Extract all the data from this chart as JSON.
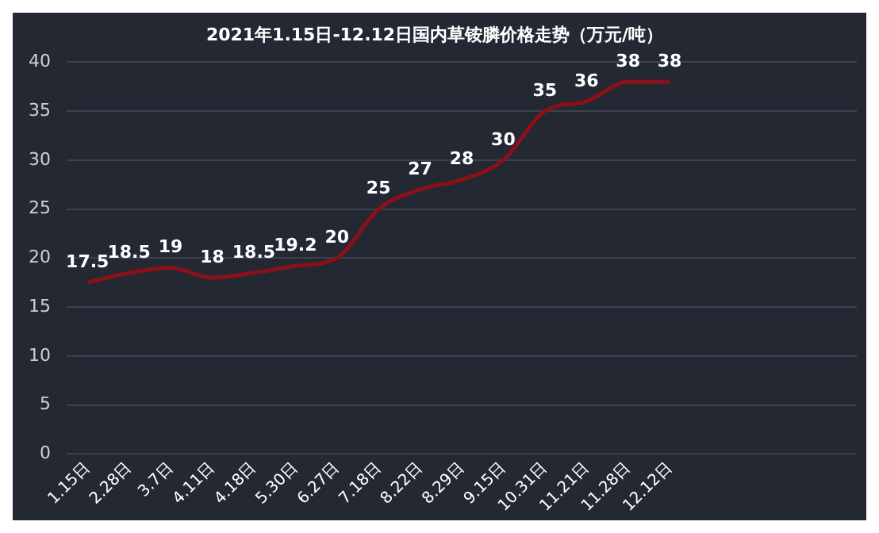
{
  "chart_data": {
    "type": "line",
    "title": "2021年1.15日-12.12日国内草铵膦价格走势（万元/吨）",
    "categories": [
      "1.15日",
      "2.28日",
      "3.7日",
      "4.11日",
      "4.18日",
      "5.30日",
      "6.27日",
      "7.18日",
      "8.22日",
      "8.29日",
      "9.15日",
      "10.31日",
      "11.21日",
      "11.28日",
      "12.12日"
    ],
    "series": [
      {
        "color": "#8b1018",
        "values": [
          17.5,
          18.5,
          19,
          18,
          18.5,
          19.2,
          20,
          25,
          27,
          28,
          30,
          35,
          36,
          38,
          38
        ]
      }
    ],
    "ylim": [
      0,
      40
    ],
    "yticks": [
      0,
      5,
      10,
      15,
      20,
      25,
      30,
      35,
      40
    ],
    "grid": "y",
    "legend": false,
    "marker": "none",
    "line_style": "solid",
    "data_labels": true
  }
}
